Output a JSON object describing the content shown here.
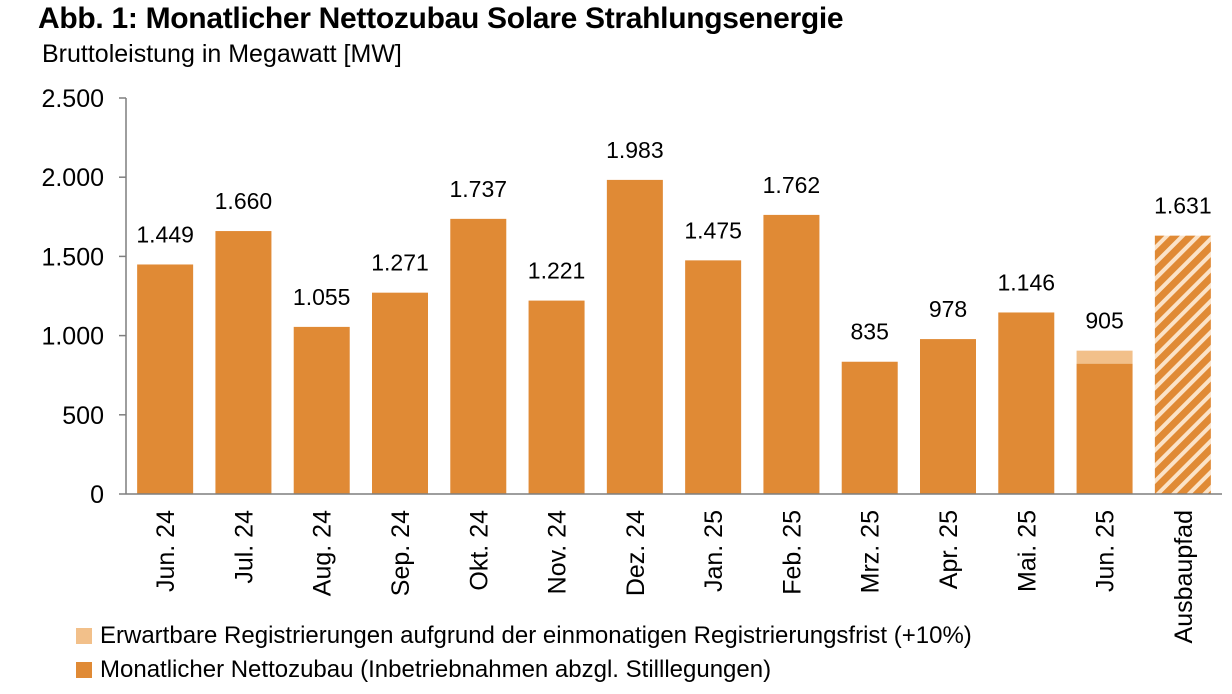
{
  "header": {
    "title": "Abb. 1: Monatlicher Nettozubau Solare Strahlungsenergie",
    "subtitle": "Bruttoleistung in Megawatt [MW]"
  },
  "colors": {
    "net": "#E08A35",
    "expected": "#F2C08A",
    "hatch_bg": "#E08A35",
    "hatch_stripe": "#FBE3C8",
    "axis": "#7f7f7f"
  },
  "chart_data": {
    "type": "bar",
    "stacked": true,
    "categories": [
      "Jun. 24",
      "Jul. 24",
      "Aug. 24",
      "Sep. 24",
      "Okt. 24",
      "Nov. 24",
      "Dez. 24",
      "Jan. 25",
      "Feb. 25",
      "Mrz. 25",
      "Apr. 25",
      "Mai. 25",
      "Jun. 25",
      "Ausbaupfad"
    ],
    "series": [
      {
        "name": "Monatlicher Nettozubau (Inbetriebnahmen abzgl. Stilllegungen)",
        "values": [
          1449,
          1660,
          1055,
          1271,
          1737,
          1221,
          1983,
          1475,
          1762,
          835,
          978,
          1146,
          823,
          1631
        ]
      },
      {
        "name": "Erwartbare Registrierungen aufgrund der einmonatigen Registrierungsfrist (+10%)",
        "values": [
          0,
          0,
          0,
          0,
          0,
          0,
          0,
          0,
          0,
          0,
          0,
          0,
          82,
          0
        ]
      }
    ],
    "hatched_categories": [
      "Ausbaupfad"
    ],
    "data_labels": [
      "1.449",
      "1.660",
      "1.055",
      "1.271",
      "1.737",
      "1.221",
      "1.983",
      "1.475",
      "1.762",
      "835",
      "978",
      "1.146",
      "905",
      "1.631"
    ],
    "y_ticks": [
      0,
      500,
      1000,
      1500,
      2000,
      2500
    ],
    "y_tick_labels": [
      "0",
      "500",
      "1.000",
      "1.500",
      "2.000",
      "2.500"
    ],
    "ylim": [
      0,
      2500
    ],
    "grid": false,
    "legend_position": "bottom-left"
  },
  "legend": {
    "expected_label": "Erwartbare Registrierungen aufgrund der einmonatigen Registrierungsfrist (+10%)",
    "net_label": "Monatlicher Nettozubau (Inbetriebnahmen abzgl. Stilllegungen)"
  }
}
